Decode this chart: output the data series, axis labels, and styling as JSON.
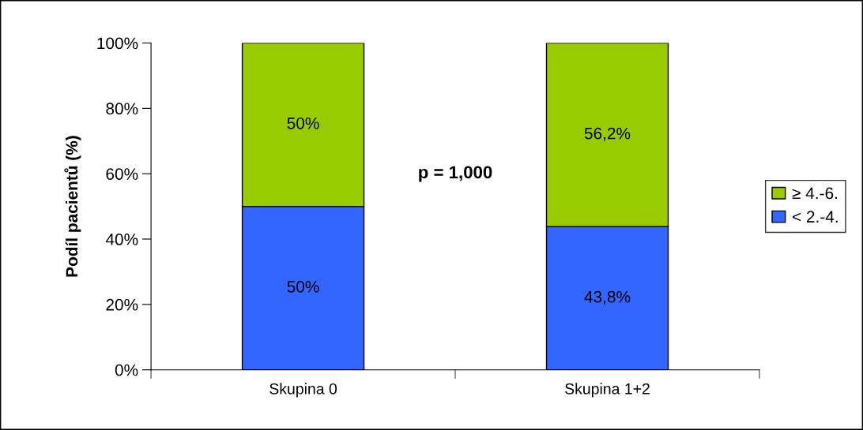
{
  "chart_data": {
    "type": "bar",
    "stacked": true,
    "ylabel": "Podíl pacientů (%)",
    "categories": [
      "Skupina 0",
      "Skupina 1+2"
    ],
    "series": [
      {
        "name": "< 2.-4.",
        "color": "#3366ff",
        "values": [
          50,
          43.8
        ],
        "value_labels": [
          "50%",
          "43,8%"
        ]
      },
      {
        "name": "≥ 4.-6.",
        "color": "#99cc00",
        "values": [
          50,
          56.2
        ],
        "value_labels": [
          "50%",
          "56,2%"
        ]
      }
    ],
    "ylim": [
      0,
      100
    ],
    "yticks": [
      {
        "value": 0,
        "label": "0%"
      },
      {
        "value": 20,
        "label": "20%"
      },
      {
        "value": 40,
        "label": "40%"
      },
      {
        "value": 60,
        "label": "60%"
      },
      {
        "value": 80,
        "label": "80%"
      },
      {
        "value": 100,
        "label": "100%"
      }
    ],
    "annotations": [
      "p = 1,000"
    ],
    "legend": "right",
    "grid": false
  }
}
